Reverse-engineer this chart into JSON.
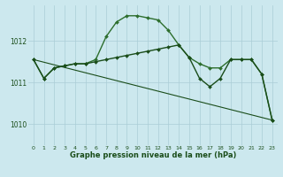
{
  "xlabel": "Graphe pression niveau de la mer (hPa)",
  "background_color": "#cce8ee",
  "grid_color": "#aacdd6",
  "ylim": [
    1009.5,
    1012.85
  ],
  "yticks": [
    1010,
    1011,
    1012
  ],
  "xticks": [
    0,
    1,
    2,
    3,
    4,
    5,
    6,
    7,
    8,
    9,
    10,
    11,
    12,
    13,
    14,
    15,
    16,
    17,
    18,
    19,
    20,
    21,
    22,
    23
  ],
  "series": [
    {
      "x": [
        0,
        1,
        2,
        3,
        4,
        5,
        6,
        7,
        8,
        9,
        10,
        11,
        12,
        13,
        14,
        15,
        16,
        17,
        18,
        19,
        20,
        21,
        22,
        23
      ],
      "y": [
        1011.55,
        1011.1,
        1011.35,
        1011.4,
        1011.45,
        1011.45,
        1011.55,
        1012.1,
        1012.45,
        1012.6,
        1012.6,
        1012.55,
        1012.5,
        1012.25,
        1011.9,
        1011.6,
        1011.45,
        1011.35,
        1011.35,
        1011.55,
        1011.55,
        1011.55,
        1011.2,
        1010.1
      ],
      "color": "#2d6e2d",
      "linewidth": 1.0,
      "marker": "D",
      "markersize": 2.0
    },
    {
      "x": [
        0,
        1,
        2,
        3,
        4,
        5,
        6,
        7,
        8,
        9,
        10,
        11,
        12,
        13,
        14,
        15,
        16,
        17,
        18,
        19,
        20,
        21,
        22,
        23
      ],
      "y": [
        1011.55,
        1011.1,
        1011.35,
        1011.4,
        1011.45,
        1011.45,
        1011.5,
        1011.55,
        1011.6,
        1011.65,
        1011.7,
        1011.75,
        1011.8,
        1011.85,
        1011.9,
        1011.6,
        1011.1,
        1010.9,
        1011.1,
        1011.55,
        1011.55,
        1011.55,
        1011.2,
        1010.1
      ],
      "color": "#1a4d1a",
      "linewidth": 1.0,
      "marker": "D",
      "markersize": 2.0
    },
    {
      "x": [
        0,
        23
      ],
      "y": [
        1011.55,
        1010.1
      ],
      "color": "#1a4d1a",
      "linewidth": 0.8,
      "marker": null,
      "markersize": 0
    }
  ]
}
